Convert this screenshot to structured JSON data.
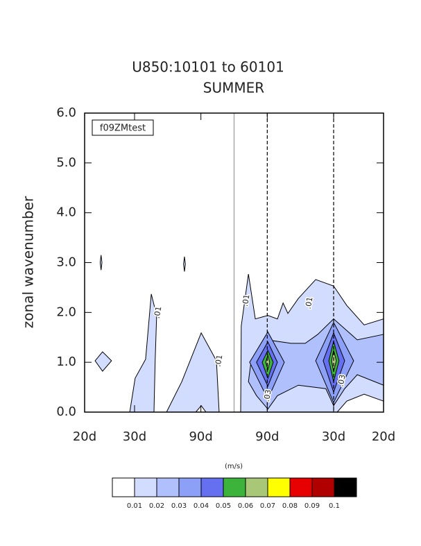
{
  "chart_data": {
    "type": "contour",
    "title": "U850:10101 to 60101",
    "subtitle": "SUMMER",
    "ylabel": "zonal wavenumber",
    "label_box": "f09ZMtest",
    "xlim": [
      -0.05,
      0.05
    ],
    "xticks": [
      {
        "value": -0.05,
        "label": "20d"
      },
      {
        "value": -0.0333,
        "label": "30d"
      },
      {
        "value": -0.0111,
        "label": "90d"
      },
      {
        "value": 0.0111,
        "label": "90d"
      },
      {
        "value": 0.0333,
        "label": "30d"
      },
      {
        "value": 0.05,
        "label": "20d"
      }
    ],
    "ylim": [
      0,
      6
    ],
    "yticks": [
      {
        "value": 0,
        "label": "0.0"
      },
      {
        "value": 1,
        "label": "1.0"
      },
      {
        "value": 2,
        "label": "2.0"
      },
      {
        "value": 3,
        "label": "3.0"
      },
      {
        "value": 4,
        "label": "4.0"
      },
      {
        "value": 5,
        "label": "5.0"
      },
      {
        "value": 6,
        "label": "6.0"
      }
    ],
    "vlines": [
      {
        "x": 0,
        "style": "solid"
      },
      {
        "x": 0.0111,
        "style": "dashed"
      },
      {
        "x": 0.0333,
        "style": "dashed"
      }
    ],
    "contours": [
      {
        "level": 0.01,
        "polygons": [
          [
            [
              -0.0465,
              1.03
            ],
            [
              -0.044,
              1.21
            ],
            [
              -0.041,
              1.03
            ],
            [
              -0.044,
              0.82
            ]
          ],
          [
            [
              -0.0448,
              3.0
            ],
            [
              -0.0445,
              3.15
            ],
            [
              -0.0442,
              3.0
            ],
            [
              -0.0445,
              2.85
            ]
          ],
          [
            [
              -0.0169,
              2.97
            ],
            [
              -0.0166,
              3.12
            ],
            [
              -0.0163,
              2.97
            ],
            [
              -0.0166,
              2.82
            ]
          ],
          [
            [
              -0.0349,
              0
            ],
            [
              -0.0331,
              0.68
            ],
            [
              -0.0296,
              1.06
            ],
            [
              -0.0277,
              2.37
            ],
            [
              -0.0259,
              1.94
            ],
            [
              -0.0264,
              1.03
            ],
            [
              -0.0268,
              0
            ]
          ],
          [
            [
              -0.0226,
              0
            ],
            [
              -0.0175,
              0.61
            ],
            [
              -0.011,
              1.59
            ],
            [
              -0.0059,
              1.03
            ],
            [
              -0.005,
              0
            ],
            [
              -0.0094,
              0
            ],
            [
              -0.011,
              0.13
            ],
            [
              -0.0128,
              0
            ]
          ],
          [
            [
              0.0022,
              0
            ],
            [
              0.0024,
              1.73
            ],
            [
              0.0048,
              2.77
            ],
            [
              0.0071,
              1.87
            ],
            [
              0.0113,
              1.94
            ],
            [
              0.0145,
              1.87
            ],
            [
              0.0164,
              2.19
            ],
            [
              0.018,
              1.98
            ],
            [
              0.0215,
              2.28
            ],
            [
              0.0273,
              2.66
            ],
            [
              0.0333,
              2.53
            ],
            [
              0.0377,
              2.14
            ],
            [
              0.0435,
              1.75
            ],
            [
              0.05,
              1.87
            ],
            [
              0.05,
              0.22
            ],
            [
              0.0435,
              0.36
            ],
            [
              0.0377,
              0.22
            ],
            [
              0.0345,
              0
            ]
          ]
        ]
      },
      {
        "level": 0.02,
        "polygons": [
          [
            [
              0.0048,
              0.61
            ],
            [
              0.0057,
              1.03
            ],
            [
              0.011,
              1.45
            ],
            [
              0.0191,
              1.38
            ],
            [
              0.0238,
              1.38
            ],
            [
              0.028,
              1.56
            ],
            [
              0.0333,
              1.87
            ],
            [
              0.0412,
              1.45
            ],
            [
              0.05,
              1.56
            ],
            [
              0.05,
              0.54
            ],
            [
              0.0412,
              0.75
            ],
            [
              0.037,
              0.47
            ],
            [
              0.0333,
              0.13
            ],
            [
              0.0307,
              0.47
            ],
            [
              0.0215,
              0.54
            ],
            [
              0.0145,
              0.33
            ],
            [
              0.0113,
              0.06
            ],
            [
              0.0075,
              0.33
            ]
          ]
        ]
      },
      {
        "level": 0.03,
        "polygons": [
          [
            [
              0.0052,
              1.0
            ],
            [
              0.0113,
              1.61
            ],
            [
              0.0168,
              1.0
            ],
            [
              0.0113,
              0.26
            ]
          ],
          [
            [
              0.0273,
              1.03
            ],
            [
              0.0333,
              1.8
            ],
            [
              0.04,
              1.03
            ],
            [
              0.0333,
              0.19
            ]
          ]
        ]
      },
      {
        "level": 0.04,
        "polygons": [
          [
            [
              0.0075,
              1.0
            ],
            [
              0.0113,
              1.41
            ],
            [
              0.0145,
              1.0
            ],
            [
              0.0113,
              0.52
            ]
          ],
          [
            [
              0.0298,
              1.03
            ],
            [
              0.0333,
              1.59
            ],
            [
              0.037,
              1.03
            ],
            [
              0.0333,
              0.4
            ]
          ]
        ]
      },
      {
        "level": 0.05,
        "polygons": [
          [
            [
              0.0094,
              1.0
            ],
            [
              0.0113,
              1.24
            ],
            [
              0.0131,
              1.0
            ],
            [
              0.0113,
              0.68
            ]
          ],
          [
            [
              0.0317,
              1.03
            ],
            [
              0.0333,
              1.42
            ],
            [
              0.0351,
              1.03
            ],
            [
              0.0333,
              0.61
            ]
          ]
        ]
      },
      {
        "level": 0.06,
        "polygons": [
          [
            [
              0.0106,
              1.0
            ],
            [
              0.0113,
              1.14
            ],
            [
              0.0119,
              1.0
            ],
            [
              0.0113,
              0.86
            ]
          ],
          [
            [
              0.0326,
              1.03
            ],
            [
              0.0333,
              1.24
            ],
            [
              0.0342,
              1.03
            ],
            [
              0.0333,
              0.82
            ]
          ]
        ]
      }
    ],
    "contour_labels": [
      {
        "text": ".01",
        "x": -0.0254,
        "y": 2.0
      },
      {
        "text": ".01",
        "x": 0.0041,
        "y": 2.24
      },
      {
        "text": ".01",
        "x": 0.0252,
        "y": 2.19
      },
      {
        "text": ".01",
        "x": -0.005,
        "y": 1.03
      },
      {
        "text": ".03",
        "x": 0.0113,
        "y": 0.33
      },
      {
        "text": ".03",
        "x": 0.0361,
        "y": 0.63
      }
    ],
    "colorbar": {
      "label": "(m/s)",
      "levels": [
        0.01,
        0.02,
        0.03,
        0.04,
        0.05,
        0.06,
        0.07,
        0.08,
        0.09,
        0.1
      ],
      "colors": [
        "#ffffff",
        "#d2dcff",
        "#afc0fc",
        "#8ca0f8",
        "#6470f0",
        "#3cb43c",
        "#a8c878",
        "#ffff00",
        "#e60000",
        "#b00000",
        "#000000"
      ]
    }
  }
}
